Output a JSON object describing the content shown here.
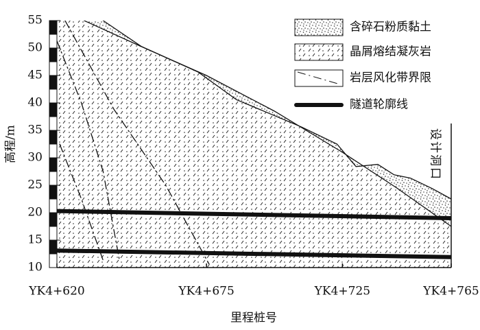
{
  "chart_data": {
    "type": "line",
    "ylabel": "高程/m",
    "xlabel": "里程桩号",
    "annotation": "设计洞口",
    "xlim": [
      620,
      765
    ],
    "ylim": [
      10,
      55
    ],
    "xticks": [
      {
        "value": 620,
        "label": "YK4+620"
      },
      {
        "value": 675,
        "label": "YK4+675"
      },
      {
        "value": 725,
        "label": "YK4+725"
      },
      {
        "value": 765,
        "label": "YK4+765"
      }
    ],
    "yticks": [
      10,
      15,
      20,
      25,
      30,
      35,
      40,
      45,
      50,
      55
    ],
    "series": [
      {
        "name": "含碎石粉质黏土",
        "color": "#111111",
        "lines": [
          {
            "x": [
              637,
              651,
              672,
              686,
              710,
              723,
              730,
              738,
              744,
              750,
              758,
              765
            ],
            "values": [
              55,
              50.3,
              45.6,
              40.6,
              35.6,
              32.5,
              28.4,
              28.8,
              26.9,
              26.3,
              24.4,
              22.5
            ]
          }
        ]
      },
      {
        "name": "晶屑熔结凝灰岩",
        "color": "#111111",
        "lines": [
          {
            "x": [
              630,
              650,
              675,
              700,
              725,
              745,
              765
            ],
            "values": [
              55,
              50.5,
              45,
              38.5,
              31,
              24.5,
              17.5
            ]
          }
        ]
      },
      {
        "name": "岩层风化带界限",
        "color": "#111111",
        "lines": [
          {
            "x": [
              623,
              641,
              660,
              676
            ],
            "values": [
              55,
              38.8,
              25,
              10.6
            ]
          },
          {
            "x": [
              620,
              629,
              637,
              643
            ],
            "values": [
              51.3,
              40,
              27.5,
              11.3
            ]
          },
          {
            "x": [
              621,
              629,
              637
            ],
            "values": [
              32.5,
              22.5,
              11.3
            ]
          }
        ]
      },
      {
        "name": "隧道轮廓线",
        "color": "#111111",
        "lines": [
          {
            "x": [
              620,
              765
            ],
            "values": [
              20.3,
              19
            ]
          },
          {
            "x": [
              620,
              765
            ],
            "values": [
              13.1,
              11.9
            ]
          }
        ]
      }
    ]
  }
}
